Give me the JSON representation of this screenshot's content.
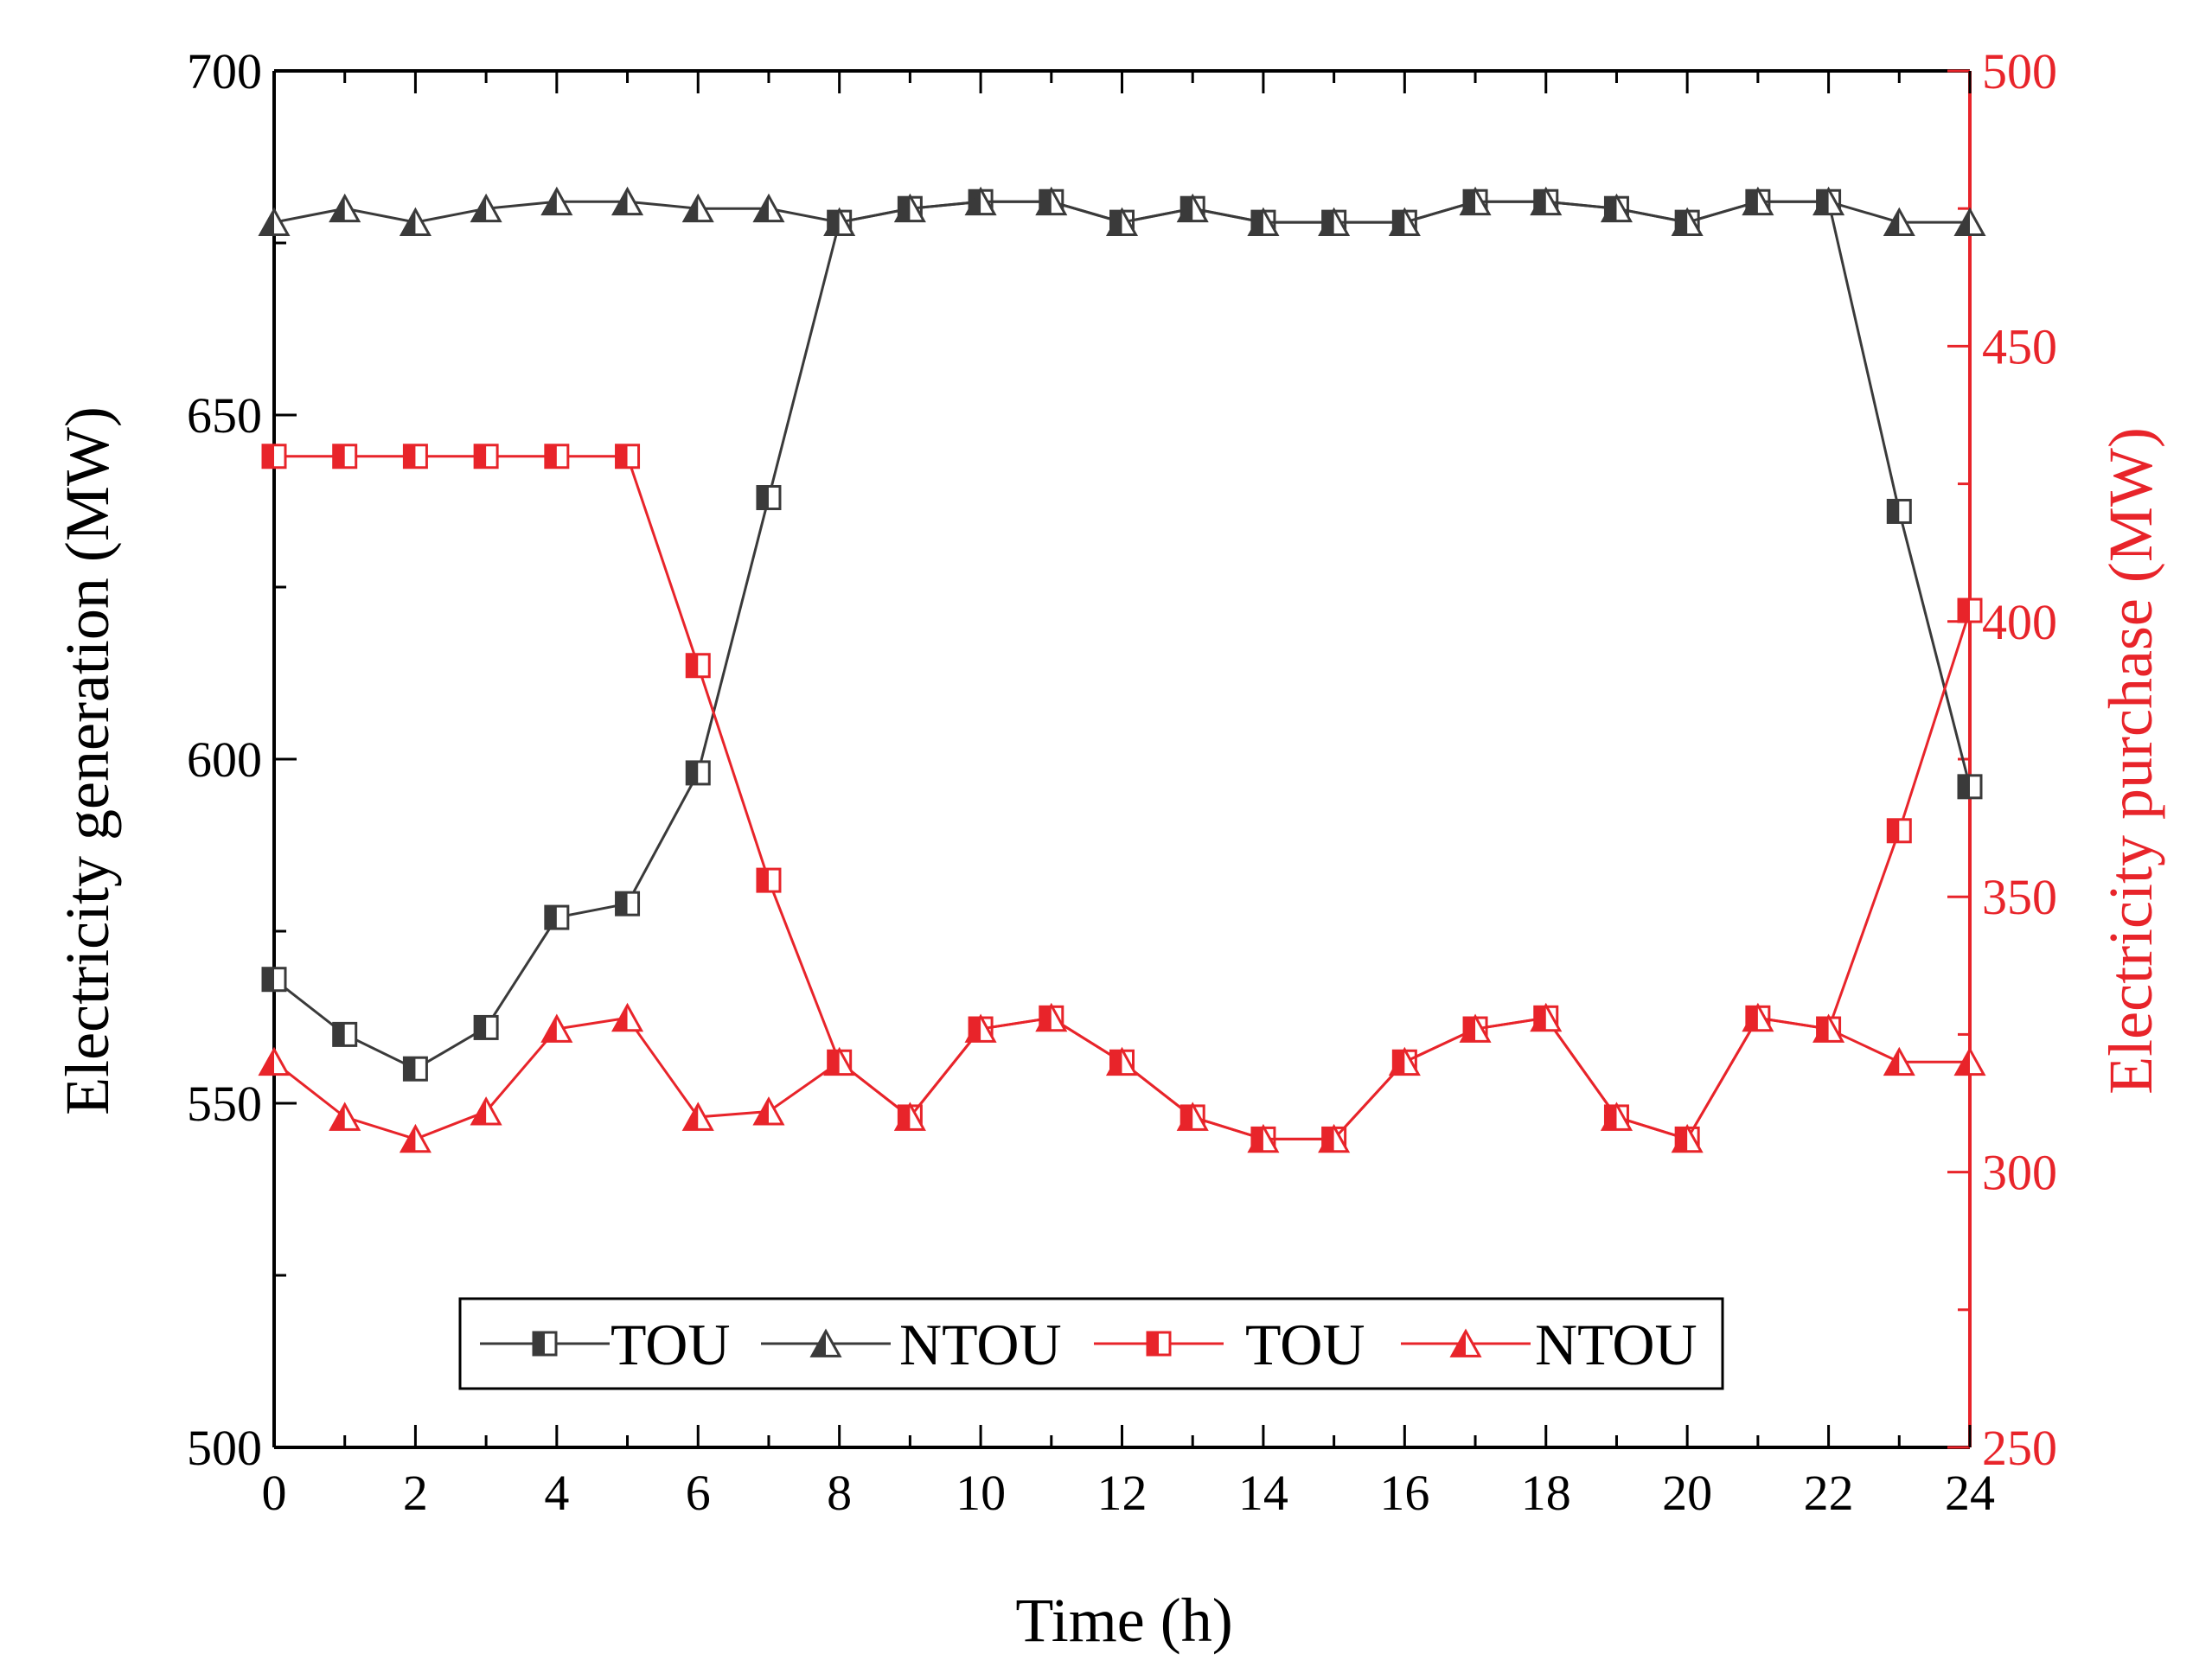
{
  "chart_data": {
    "type": "line",
    "xlabel": "Time (h)",
    "ylabel_left": "Electricity generation (MW)",
    "ylabel_right": "Electricity purchase (MW)",
    "xlim": [
      0,
      24
    ],
    "xticks": [
      0,
      2,
      4,
      6,
      8,
      10,
      12,
      14,
      16,
      18,
      20,
      22,
      24
    ],
    "ylim_left": [
      500,
      700
    ],
    "yticks_left": [
      500,
      550,
      600,
      650,
      700
    ],
    "ylim_right": [
      250,
      500
    ],
    "yticks_right": [
      250,
      300,
      350,
      400,
      450,
      500
    ],
    "grid": false,
    "legend_position": "bottom-center",
    "x": [
      0,
      1,
      2,
      3,
      4,
      5,
      6,
      7,
      8,
      9,
      10,
      11,
      12,
      13,
      14,
      15,
      16,
      17,
      18,
      19,
      20,
      21,
      22,
      23,
      24
    ],
    "series": [
      {
        "name": "TOU",
        "axis": "left",
        "color": "#3a3a3a",
        "marker": "square",
        "values": [
          568,
          560,
          555,
          561,
          577,
          579,
          598,
          638,
          678,
          680,
          681,
          681,
          678,
          680,
          678,
          678,
          678,
          681,
          681,
          680,
          678,
          681,
          681,
          636,
          596
        ]
      },
      {
        "name": "NTOU",
        "axis": "left",
        "color": "#3a3a3a",
        "marker": "triangle",
        "values": [
          678,
          680,
          678,
          680,
          681,
          681,
          680,
          680,
          678,
          680,
          681,
          681,
          678,
          680,
          678,
          678,
          678,
          681,
          681,
          680,
          678,
          681,
          681,
          678,
          678
        ]
      },
      {
        "name": "TOU",
        "axis": "right",
        "color": "#e8242a",
        "marker": "square",
        "values": [
          430,
          430,
          430,
          430,
          430,
          430,
          392,
          353,
          320,
          310,
          326,
          328,
          320,
          310,
          306,
          306,
          320,
          326,
          328,
          310,
          306,
          328,
          326,
          362,
          402
        ]
      },
      {
        "name": "NTOU",
        "axis": "right",
        "color": "#e8242a",
        "marker": "triangle",
        "values": [
          320,
          310,
          306,
          311,
          326,
          328,
          310,
          311,
          320,
          310,
          326,
          328,
          320,
          310,
          306,
          306,
          320,
          326,
          328,
          310,
          306,
          328,
          326,
          320,
          320
        ]
      }
    ]
  },
  "colors": {
    "left_axis": "#000000",
    "right_axis": "#e8242a"
  }
}
